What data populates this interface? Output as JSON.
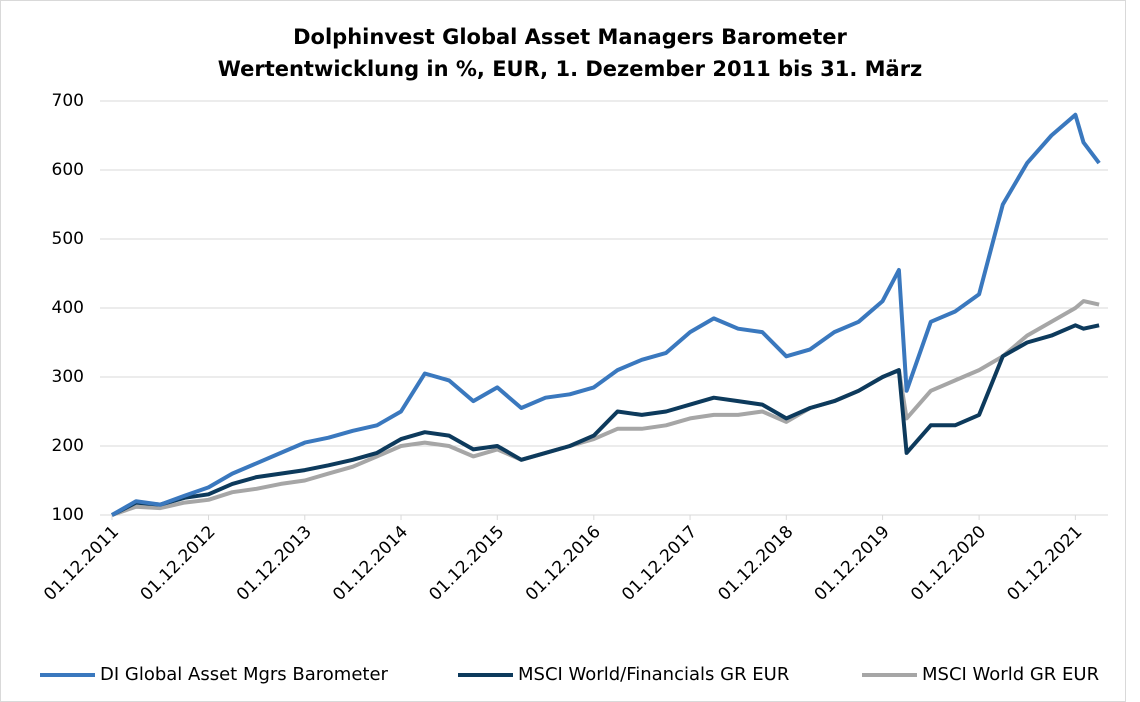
{
  "chart_data": {
    "type": "line",
    "title": [
      "Dolphinvest Global Asset Managers Barometer",
      "Wertentwicklung in %, EUR, 1. Dezember 2011 bis 31. März"
    ],
    "x": [
      "2011-12-01",
      "2012-03-01",
      "2012-06-01",
      "2012-09-01",
      "2012-12-01",
      "2013-03-01",
      "2013-06-01",
      "2013-09-01",
      "2013-12-01",
      "2014-03-01",
      "2014-06-01",
      "2014-09-01",
      "2014-12-01",
      "2015-03-01",
      "2015-06-01",
      "2015-09-01",
      "2015-12-01",
      "2016-03-01",
      "2016-06-01",
      "2016-09-01",
      "2016-12-01",
      "2017-03-01",
      "2017-06-01",
      "2017-09-01",
      "2017-12-01",
      "2018-03-01",
      "2018-06-01",
      "2018-09-01",
      "2018-12-01",
      "2019-03-01",
      "2019-06-01",
      "2019-09-01",
      "2019-12-01",
      "2020-02-01",
      "2020-03-01",
      "2020-06-01",
      "2020-09-01",
      "2020-12-01",
      "2021-03-01",
      "2021-06-01",
      "2021-09-01",
      "2021-12-01",
      "2022-01-01",
      "2022-03-01"
    ],
    "series": [
      {
        "name": "DI Global Asset Mgrs Barometer",
        "color": "#3a78be",
        "values": [
          100,
          120,
          115,
          128,
          140,
          160,
          175,
          190,
          205,
          212,
          222,
          230,
          250,
          305,
          295,
          265,
          285,
          255,
          270,
          275,
          285,
          310,
          325,
          335,
          365,
          385,
          370,
          365,
          330,
          340,
          365,
          380,
          410,
          455,
          280,
          380,
          395,
          420,
          550,
          610,
          650,
          680,
          640,
          610
        ]
      },
      {
        "name": "MSCI World/Financials GR EUR",
        "color": "#0d3a5c",
        "values": [
          100,
          118,
          115,
          125,
          130,
          145,
          155,
          160,
          165,
          172,
          180,
          190,
          210,
          220,
          215,
          195,
          200,
          180,
          190,
          200,
          215,
          250,
          245,
          250,
          260,
          270,
          265,
          260,
          240,
          255,
          265,
          280,
          300,
          310,
          190,
          230,
          230,
          245,
          330,
          350,
          360,
          375,
          370,
          375
        ]
      },
      {
        "name": "MSCI World GR EUR",
        "color": "#a6a6a6",
        "values": [
          100,
          112,
          110,
          118,
          122,
          133,
          138,
          145,
          150,
          160,
          170,
          185,
          200,
          205,
          200,
          185,
          195,
          180,
          190,
          200,
          210,
          225,
          225,
          230,
          240,
          245,
          245,
          250,
          235,
          255,
          265,
          280,
          300,
          310,
          240,
          280,
          295,
          310,
          330,
          360,
          380,
          400,
          410,
          405
        ]
      }
    ],
    "xlim": [
      "2011-12-01",
      "2022-03-31"
    ],
    "xticks": [
      {
        "value": "2011-12-01",
        "label": "01.12.2011"
      },
      {
        "value": "2012-12-01",
        "label": "01.12.2012"
      },
      {
        "value": "2013-12-01",
        "label": "01.12.2013"
      },
      {
        "value": "2014-12-01",
        "label": "01.12.2014"
      },
      {
        "value": "2015-12-01",
        "label": "01.12.2015"
      },
      {
        "value": "2016-12-01",
        "label": "01.12.2016"
      },
      {
        "value": "2017-12-01",
        "label": "01.12.2017"
      },
      {
        "value": "2018-12-01",
        "label": "01.12.2018"
      },
      {
        "value": "2019-12-01",
        "label": "01.12.2019"
      },
      {
        "value": "2020-12-01",
        "label": "01.12.2020"
      },
      {
        "value": "2021-12-01",
        "label": "01.12.2021"
      }
    ],
    "ylim": [
      100,
      700
    ],
    "yticks": [
      100,
      200,
      300,
      400,
      500,
      600,
      700
    ],
    "grid": true,
    "legend": "bottom"
  }
}
